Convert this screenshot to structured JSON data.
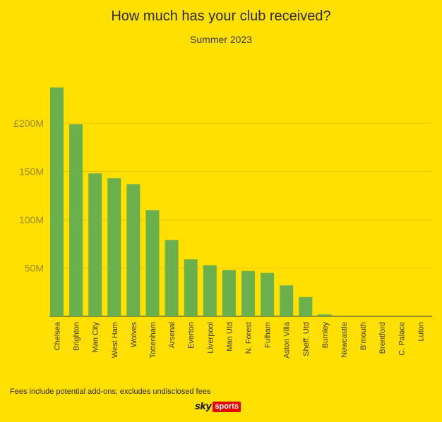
{
  "chart_data": {
    "type": "bar",
    "title": "How much has your club received?",
    "subtitle": "Summer 2023",
    "categories": [
      "Chelsea",
      "Brighton",
      "Man City",
      "West Ham",
      "Wolves",
      "Tottenham",
      "Arsenal",
      "Everton",
      "Liverpool",
      "Man Utd",
      "N. Forest",
      "Fulham",
      "Aston Villa",
      "Sheff. Utd",
      "Burnley",
      "Newcastle",
      "B'mouth",
      "Brentford",
      "C. Palace",
      "Luton"
    ],
    "values": [
      237,
      199,
      148,
      143,
      137,
      110,
      79,
      59,
      53,
      48,
      47,
      45,
      32,
      20,
      2,
      0,
      0,
      0,
      0,
      0
    ],
    "yticks": [
      50,
      100,
      150,
      200
    ],
    "ytick_labels": [
      "50M",
      "100M",
      "150M",
      "£200M"
    ],
    "ylim": [
      0,
      240
    ],
    "grid": true,
    "bar_color": "#6AB04C",
    "grid_color": "#E8C600",
    "xlabel": "",
    "ylabel": ""
  },
  "footnote": "Fees include potential add-ons; excludes undisclosed fees",
  "logo": {
    "sky": "sky",
    "sports": "sports"
  },
  "colors": {
    "background": "#FFE000",
    "accent": "#E10600"
  }
}
